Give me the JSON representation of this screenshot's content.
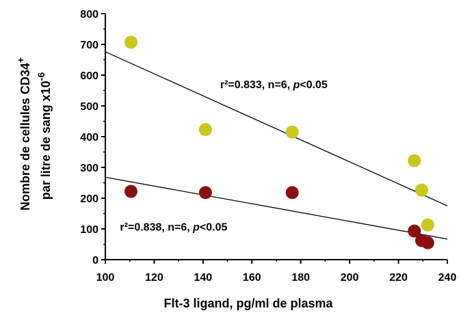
{
  "chart_data": {
    "type": "scatter",
    "xlabel": "Flt-3 ligand, pg/ml de plasma",
    "ylabel_line1_prefix": "Nombre de cellules CD34",
    "ylabel_line1_sup": "+",
    "ylabel_line2_prefix": "par litre de sang x10",
    "ylabel_line2_sup": "-6",
    "xlim": [
      100,
      240
    ],
    "ylim": [
      0,
      800
    ],
    "x_ticks": [
      100,
      120,
      140,
      160,
      180,
      200,
      220,
      240
    ],
    "y_ticks": [
      0,
      100,
      200,
      300,
      400,
      500,
      600,
      700,
      800
    ],
    "grid": false,
    "series": [
      {
        "color": "#c8c81e",
        "points": [
          {
            "x": 110.5,
            "y": 707
          },
          {
            "x": 141,
            "y": 423
          },
          {
            "x": 176.5,
            "y": 415
          },
          {
            "x": 226.5,
            "y": 322
          },
          {
            "x": 229.5,
            "y": 226
          },
          {
            "x": 232,
            "y": 113
          }
        ],
        "trendline": {
          "x": [
            100,
            240
          ],
          "y": [
            676,
            175
          ]
        },
        "annotation": {
          "pre": "r²=0.833, n=6, ",
          "p": "p",
          "post": "<0.05",
          "at": {
            "x": 147,
            "y": 558
          }
        }
      },
      {
        "color": "#8b0f12",
        "points": [
          {
            "x": 110.5,
            "y": 222
          },
          {
            "x": 141,
            "y": 218
          },
          {
            "x": 176.5,
            "y": 218
          },
          {
            "x": 226.5,
            "y": 93
          },
          {
            "x": 229.5,
            "y": 62
          },
          {
            "x": 232,
            "y": 55
          }
        ],
        "trendline": {
          "x": [
            100,
            240
          ],
          "y": [
            268,
            67
          ]
        },
        "annotation": {
          "pre": "r²=0.838, n=6, ",
          "p": "p",
          "post": "<0.05",
          "at": {
            "x": 106,
            "y": 95
          }
        }
      }
    ]
  }
}
